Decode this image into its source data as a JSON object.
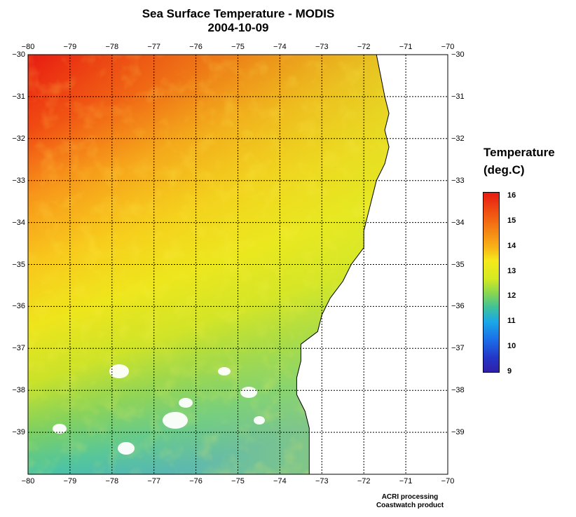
{
  "title": "Sea Surface Temperature - MODIS",
  "date": "2004-10-09",
  "axes": {
    "lon_ticks": [
      "−80",
      "−79",
      "−78",
      "−77",
      "−76",
      "−75",
      "−74",
      "−73",
      "−72",
      "−71",
      "−70"
    ],
    "lat_ticks": [
      "−30",
      "−31",
      "−32",
      "−33",
      "−34",
      "−35",
      "−36",
      "−37",
      "−38",
      "−39"
    ]
  },
  "legend": {
    "title_line1": "Temperature",
    "title_line2": "(deg.C)",
    "labels": [
      "16",
      "15",
      "14",
      "13",
      "12",
      "11",
      "10",
      "9"
    ]
  },
  "credits": {
    "line1": "ACRI processing",
    "line2": "Coastwatch product"
  },
  "colors": {
    "warm": "#e81a12",
    "mid": "#f5ea1a",
    "cool": "#1aa8e8",
    "cold": "#3020a8",
    "land": "#ffffff"
  },
  "chart_data": {
    "type": "heatmap",
    "title": "Sea Surface Temperature - MODIS",
    "subtitle": "2004-10-09",
    "xlim": [
      -80,
      -70
    ],
    "ylim": [
      -40,
      -30
    ],
    "colorbar_range": [
      9,
      16
    ],
    "colorbar_label": "Temperature (deg.C)",
    "grid": true
  }
}
